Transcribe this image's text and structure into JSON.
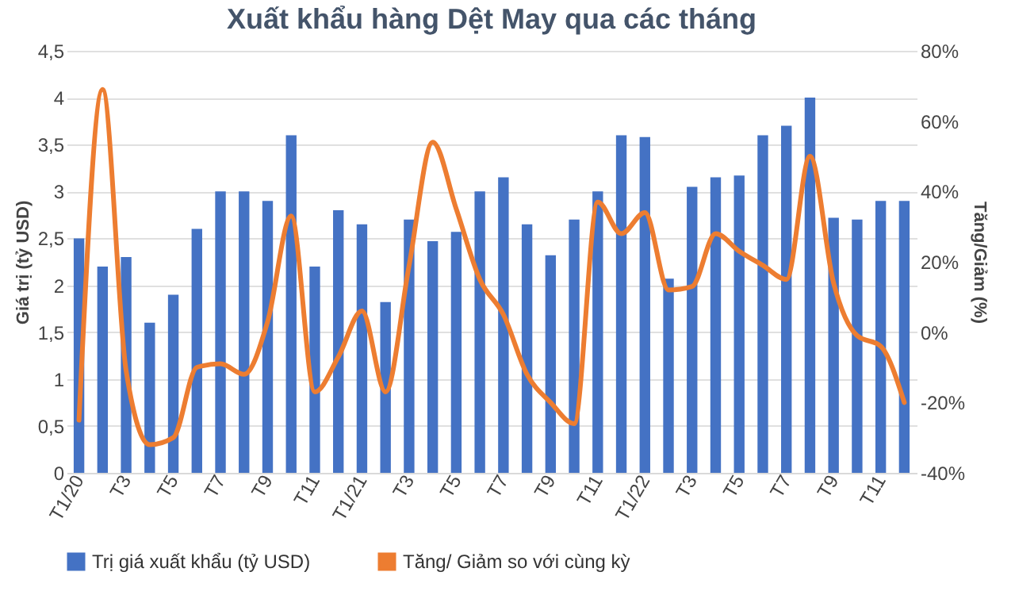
{
  "chart_data": {
    "type": "bar",
    "title": "Xuất khẩu hàng Dệt May qua các tháng",
    "categories": [
      "T1/20",
      null,
      "T3",
      null,
      "T5",
      null,
      "T7",
      null,
      "T9",
      null,
      "T11",
      null,
      "T1/21",
      null,
      "T3",
      null,
      "T5",
      null,
      "T7",
      null,
      "T9",
      null,
      "T11",
      null,
      "T1/22",
      null,
      "T3",
      null,
      "T5",
      null,
      "T7",
      null,
      "T9",
      null,
      "T11",
      null
    ],
    "series": [
      {
        "name": "Trị giá xuất khẩu (tỷ USD)",
        "color": "#4472c4",
        "values": [
          2.5,
          2.2,
          2.3,
          1.6,
          1.9,
          2.6,
          3.0,
          3.0,
          2.9,
          3.6,
          2.2,
          2.8,
          2.65,
          1.82,
          2.7,
          2.47,
          2.57,
          3.0,
          3.15,
          2.65,
          2.32,
          2.7,
          3.0,
          3.6,
          3.58,
          2.07,
          3.05,
          3.15,
          3.17,
          3.6,
          3.7,
          4.0,
          2.72,
          2.7,
          2.9,
          2.9
        ]
      },
      {
        "name": "Tăng/ Giảm so với cùng kỳ",
        "type": "line",
        "axis": "y2",
        "color": "#ed7d31",
        "values": [
          -25,
          69,
          -11,
          -32,
          -30,
          -10,
          -9,
          -12,
          3,
          33,
          -17,
          -7,
          6,
          -17,
          19,
          54,
          35,
          15,
          5,
          -12,
          -20,
          -26,
          37,
          28,
          34,
          12,
          13,
          28,
          23,
          19,
          15,
          50,
          14,
          -1,
          -4,
          -20
        ]
      }
    ],
    "ylabel": "Giá trị (tỷ USD)",
    "y2label": "Tăng/Giảm (%)",
    "ylim": [
      0,
      4.5
    ],
    "yticks": [
      0,
      {
        "value": 0.5,
        "label": "0,5"
      },
      1,
      {
        "value": 1.5,
        "label": "1,5"
      },
      2,
      {
        "value": 2.5,
        "label": "2,5"
      },
      3,
      {
        "value": 3.5,
        "label": "3,5"
      },
      4,
      {
        "value": 4.5,
        "label": "4,5"
      }
    ],
    "y2lim": [
      -40,
      80
    ],
    "y2ticks": [
      {
        "value": -40,
        "label": "-40%"
      },
      {
        "value": -20,
        "label": "-20%"
      },
      {
        "value": 0,
        "label": "0%"
      },
      {
        "value": 20,
        "label": "20%"
      },
      {
        "value": 40,
        "label": "40%"
      },
      {
        "value": 60,
        "label": "60%"
      },
      {
        "value": 80,
        "label": "80%"
      }
    ],
    "grid": "y",
    "legend": "bottom",
    "marker": "none"
  }
}
